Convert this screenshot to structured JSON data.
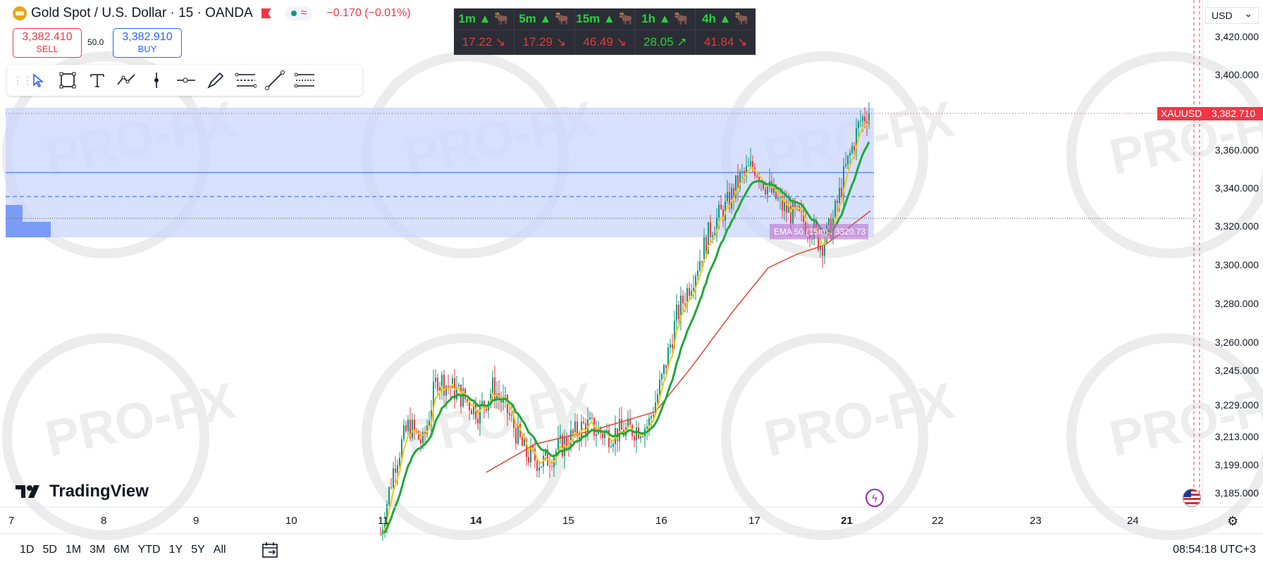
{
  "symbol": {
    "title": "Gold Spot / U.S. Dollar · 15 · OANDA",
    "change": "−0.170 (−0.01%)",
    "wave_icon": "≈"
  },
  "trade": {
    "sell_price": "3,382.410",
    "sell_label": "SELL",
    "spread": "50.0",
    "buy_price": "3,382.910",
    "buy_label": "BUY"
  },
  "drawing_tools": [
    "cursor-icon",
    "rectangle-icon",
    "text-icon",
    "path-icon",
    "vertical-line-icon",
    "horizontal-ray-icon",
    "brush-icon",
    "fib-icon",
    "trend-line-icon",
    "long-position-icon"
  ],
  "mtf_table": [
    {
      "tf": "1m ▲ 🐂",
      "value": "17.22 ↘",
      "color": "red"
    },
    {
      "tf": "5m ▲ 🐂",
      "value": "17.29 ↘",
      "color": "red"
    },
    {
      "tf": "15m ▲ 🐂",
      "value": "46.49 ↘",
      "color": "red"
    },
    {
      "tf": "1h ▲ 🐂",
      "value": "28.05 ↗",
      "color": "grn"
    },
    {
      "tf": "4h ▲ 🐂",
      "value": "41.84 ↘",
      "color": "red"
    }
  ],
  "price_axis": {
    "currency": "USD",
    "labels": [
      "3,420.000",
      "3,400.000",
      "3,360.000",
      "3,340.000",
      "3,320.000",
      "3,300.000",
      "3,280.000",
      "3,260.000",
      "3,245.000",
      "3,229.000",
      "3,213.000",
      "3,199.000",
      "3,185.000"
    ],
    "symbol_tag": "XAUUSD",
    "last_price": "3,382.710"
  },
  "time_axis": [
    {
      "label": "7",
      "bold": false
    },
    {
      "label": "8",
      "bold": false
    },
    {
      "label": "9",
      "bold": false
    },
    {
      "label": "10",
      "bold": false
    },
    {
      "label": "11",
      "bold": false
    },
    {
      "label": "14",
      "bold": true
    },
    {
      "label": "15",
      "bold": false
    },
    {
      "label": "16",
      "bold": false
    },
    {
      "label": "17",
      "bold": false
    },
    {
      "label": "21",
      "bold": true
    },
    {
      "label": "22",
      "bold": false
    },
    {
      "label": "23",
      "bold": false
    },
    {
      "label": "24",
      "bold": false
    }
  ],
  "ema_label": "EMA 50 (15m) : 3320.73",
  "branding": "TradingView",
  "watermark": "PRO-FX",
  "range_buttons": [
    "1D",
    "5D",
    "1M",
    "3M",
    "6M",
    "YTD",
    "1Y",
    "5Y",
    "All"
  ],
  "timezone_clock": "08:54:18 UTC+3",
  "colors": {
    "up": "#089981",
    "down": "#f23645",
    "zone": "#d6e0fb",
    "ema_fast": "#f5c518",
    "ema_green": "#1ea83a",
    "ema_red": "#e5482f"
  }
}
